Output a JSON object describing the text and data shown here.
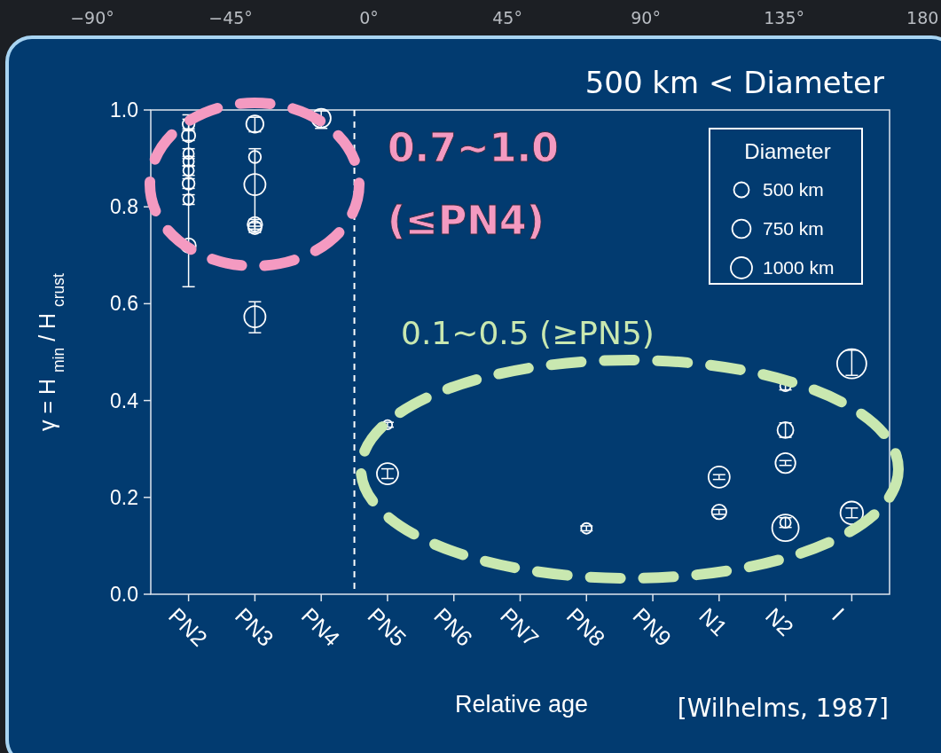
{
  "chart_data": {
    "type": "bubble",
    "xlabel": "Relative age",
    "ylabel": "γ = H $_{min}$ / H $_{crust}$",
    "legend_title": "Diameter",
    "annotations": [
      "500 km < Diameter",
      "0.7∼1.0\n(≤PN4)",
      "0.1∼0.5 (≥PN5)",
      "[Wilhelms, 1987]"
    ],
    "categories": [
      "PN2",
      "PN3",
      "PN4",
      "PN5",
      "PN6",
      "PN7",
      "PN8",
      "PN9",
      "N1",
      "N2",
      "I"
    ],
    "ylim": [
      0,
      1
    ],
    "yticks": [
      {
        "value": 0,
        "label": "0.0"
      },
      0.2,
      0.4,
      0.6,
      0.8,
      {
        "value": 1,
        "label": "1.0"
      }
    ],
    "x2lim": [
      -120,
      186
    ],
    "x2ticks": [
      {
        "value": -90,
        "label": "−90°"
      },
      {
        "value": -45,
        "label": "−45°"
      },
      {
        "value": 0,
        "label": "0°"
      },
      {
        "value": 45,
        "label": "45°"
      },
      {
        "value": 90,
        "label": "90°"
      },
      {
        "value": 135,
        "label": "135°"
      },
      {
        "value": 180,
        "label": "180"
      }
    ],
    "size_legend": [
      {
        "value": 500,
        "label": "500 km"
      },
      {
        "value": 750,
        "label": "750 km"
      },
      {
        "value": 1000,
        "label": "1000 km"
      }
    ],
    "grid": false,
    "marker": "circle",
    "series": [
      {
        "color": "#ffffff",
        "x": [
          "PN2",
          "PN2",
          "PN2",
          "PN2",
          "PN2",
          "PN2",
          "PN2",
          "PN2",
          "PN3",
          "PN3",
          "PN3",
          "PN3",
          "PN3",
          "PN3",
          "PN4",
          "PN5",
          "PN5",
          "PN8",
          "N1",
          "N1",
          "N2",
          "N2",
          "N2",
          "N2",
          "N2",
          "I",
          "I"
        ],
        "values": [
          0.971,
          0.947,
          0.91,
          0.894,
          0.875,
          0.848,
          0.815,
          0.72,
          0.971,
          0.903,
          0.846,
          0.764,
          0.757,
          0.573,
          0.983,
          0.35,
          0.249,
          0.136,
          0.242,
          0.17,
          0.43,
          0.339,
          0.271,
          0.148,
          0.137,
          0.476,
          0.168
        ],
        "sizes": [
          320,
          390,
          250,
          250,
          250,
          320,
          250,
          470,
          660,
          320,
          1000,
          470,
          390,
          1000,
          800,
          190,
          1000,
          250,
          1000,
          470,
          250,
          560,
          880,
          250,
          1560,
          1890,
          1130
        ],
        "errors": [
          0.01,
          0.01,
          0.01,
          0.01,
          0.01,
          0.01,
          0.01,
          [
            0.635,
            0.99
          ],
          [
            0.955,
            0.985
          ],
          [
            0.76,
            0.92
          ],
          null,
          0.01,
          0.01,
          [
            0.54,
            0.604
          ],
          [
            0.962,
            0.998
          ],
          0.005,
          0.01,
          0.005,
          0.005,
          0.005,
          0.008,
          0.015,
          0.005,
          0.01,
          null,
          [
            0.452,
            0.504
          ],
          0.01
        ]
      }
    ]
  }
}
